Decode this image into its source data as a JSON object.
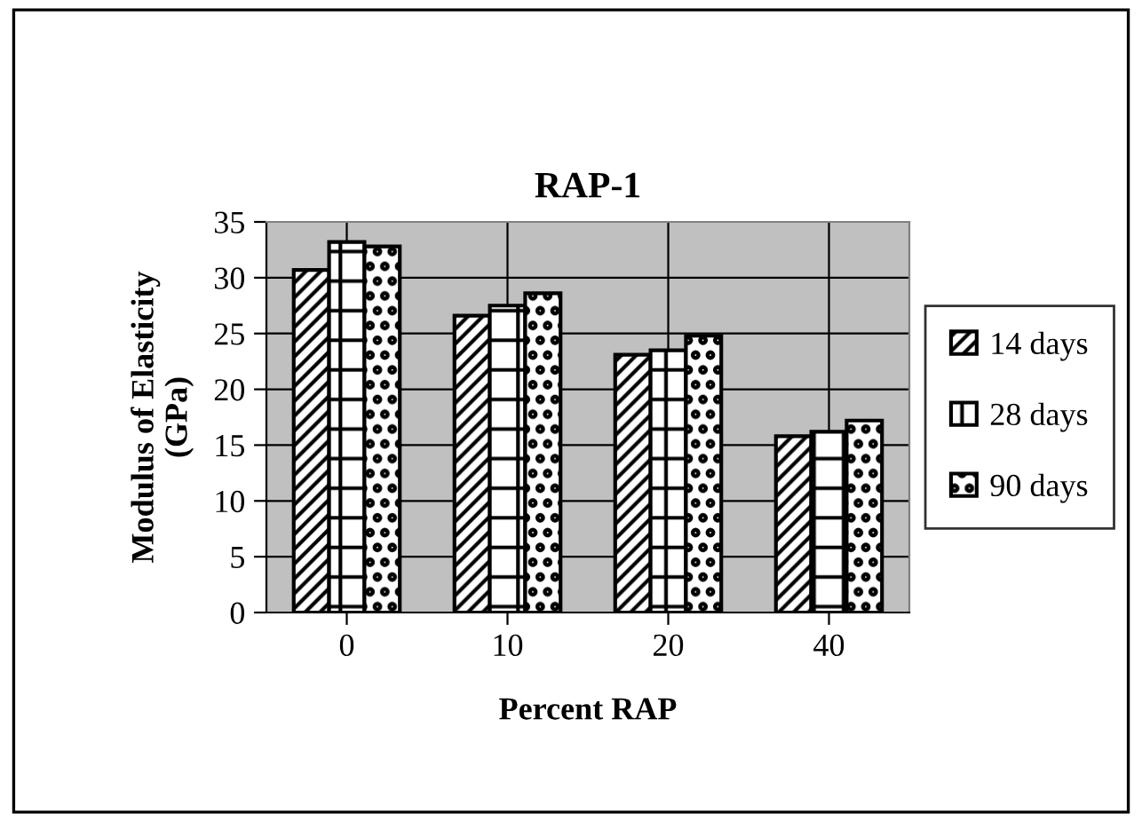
{
  "chart_data": {
    "type": "bar",
    "title": "RAP-1",
    "xlabel": "Percent RAP",
    "ylabel": "Modulus of Elasticity\n(GPa)",
    "categories": [
      "0",
      "10",
      "20",
      "40"
    ],
    "series": [
      {
        "name": "14 days",
        "color": "#000000",
        "values": [
          30.7,
          26.6,
          23.1,
          15.8
        ]
      },
      {
        "name": "28 days",
        "color": "#000000",
        "values": [
          33.2,
          27.5,
          23.5,
          16.2
        ]
      },
      {
        "name": "90 days",
        "color": "#000000",
        "values": [
          32.8,
          28.6,
          24.8,
          17.2
        ]
      }
    ],
    "ylim": [
      0,
      35
    ],
    "yticks": [
      0,
      5,
      10,
      15,
      20,
      25,
      30,
      35
    ],
    "grid": true,
    "legend": "right"
  }
}
